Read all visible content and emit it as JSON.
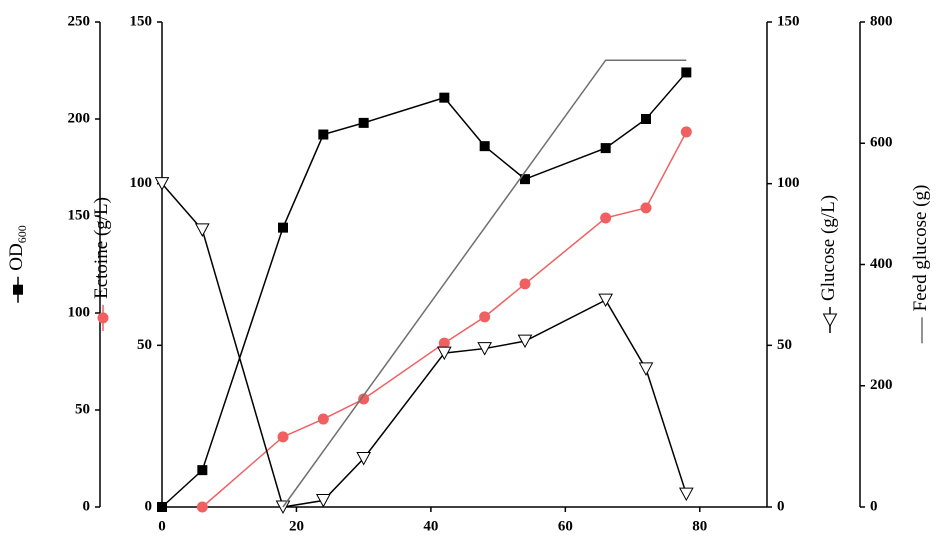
{
  "chart_data": {
    "type": "line",
    "xlim": [
      0,
      90
    ],
    "xticks": [
      0,
      20,
      40,
      60,
      80
    ],
    "y_axes": [
      {
        "lim": [
          0,
          250
        ],
        "ticks": [
          0,
          50,
          100,
          150,
          200,
          250
        ]
      },
      {
        "lim": [
          0,
          150
        ],
        "ticks": [
          0,
          50,
          100,
          150
        ]
      },
      {
        "lim": [
          0,
          150
        ],
        "ticks": [
          0,
          50,
          100,
          150
        ]
      },
      {
        "lim": [
          0,
          800
        ],
        "ticks": [
          0,
          200,
          400,
          600,
          800
        ]
      }
    ],
    "x": [
      0,
      6,
      18,
      24,
      30,
      42,
      48,
      54,
      66,
      72,
      78
    ],
    "series": [
      {
        "name": "OD",
        "name_subscript": "600",
        "axis": 0,
        "color": "#000000",
        "marker": "square",
        "values": [
          0,
          19,
          144,
          192,
          198,
          211,
          186,
          169,
          185,
          200,
          224
        ]
      },
      {
        "name": "Ectoine (g/L)",
        "axis": 1,
        "color": "#f06060",
        "marker": "circle",
        "values": [
          null,
          0,
          21.7,
          27.2,
          33.4,
          50.7,
          58.8,
          69,
          89.4,
          92.5,
          116
        ]
      },
      {
        "name": "Glucose (g/L)",
        "axis": 2,
        "color": "#000000",
        "marker": "triangle-down",
        "values": [
          100,
          85.7,
          0,
          2,
          15,
          47.6,
          49,
          51.3,
          64,
          42.7,
          4
        ]
      },
      {
        "name": "Feed glucose (g)",
        "axis": 3,
        "color": "#707070",
        "marker": "none",
        "x": [
          18,
          66,
          78
        ],
        "values": [
          0,
          737,
          737
        ]
      }
    ]
  }
}
